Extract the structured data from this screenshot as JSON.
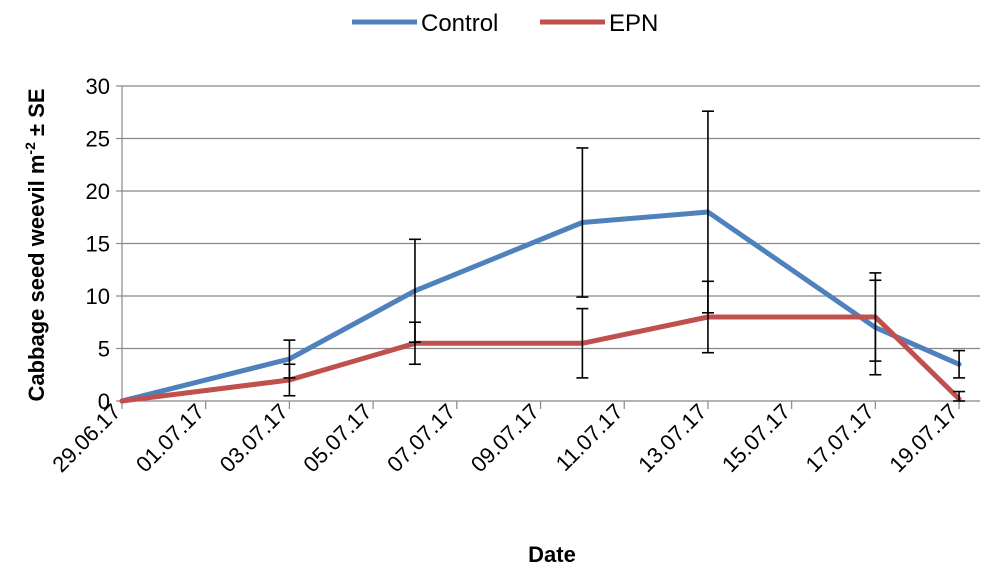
{
  "chart_data": {
    "type": "line",
    "xlabel": "Date",
    "ylabel_main": "Cabbage seed weevil m",
    "ylabel_sup": "-2",
    "ylabel_tail": " ± SE",
    "ylim": [
      0,
      30
    ],
    "yticks": [
      0,
      5,
      10,
      15,
      20,
      25,
      30
    ],
    "xlim": [
      "29.06.17",
      "19.07.17"
    ],
    "xticks": [
      "29.06.17",
      "01.07.17",
      "03.07.17",
      "05.07.17",
      "07.07.17",
      "09.07.17",
      "11.07.17",
      "13.07.17",
      "15.07.17",
      "17.07.17",
      "19.07.17"
    ],
    "grid": "horizontal",
    "legend_position": "top-center",
    "series": [
      {
        "name": "Control",
        "color": "#4f81bd",
        "points": [
          {
            "x": "29.06.17",
            "y": 0,
            "se": 0
          },
          {
            "x": "03.07.17",
            "y": 4,
            "se": 1.8
          },
          {
            "x": "06.07.17",
            "y": 10.5,
            "se": 4.9
          },
          {
            "x": "10.07.17",
            "y": 17,
            "se": 7.1
          },
          {
            "x": "13.07.17",
            "y": 18,
            "se": 9.6
          },
          {
            "x": "17.07.17",
            "y": 7,
            "se": 4.5
          },
          {
            "x": "19.07.17",
            "y": 3.5,
            "se": 1.3
          }
        ]
      },
      {
        "name": "EPN",
        "color": "#c0504d",
        "points": [
          {
            "x": "29.06.17",
            "y": 0,
            "se": 0
          },
          {
            "x": "03.07.17",
            "y": 2,
            "se": 1.5
          },
          {
            "x": "06.07.17",
            "y": 5.5,
            "se": 2
          },
          {
            "x": "10.07.17",
            "y": 5.5,
            "se": 3.3
          },
          {
            "x": "13.07.17",
            "y": 8,
            "se": 3.4
          },
          {
            "x": "17.07.17",
            "y": 8,
            "se": 4.2
          },
          {
            "x": "19.07.17",
            "y": 0.2,
            "se": 0.7
          }
        ]
      }
    ]
  }
}
